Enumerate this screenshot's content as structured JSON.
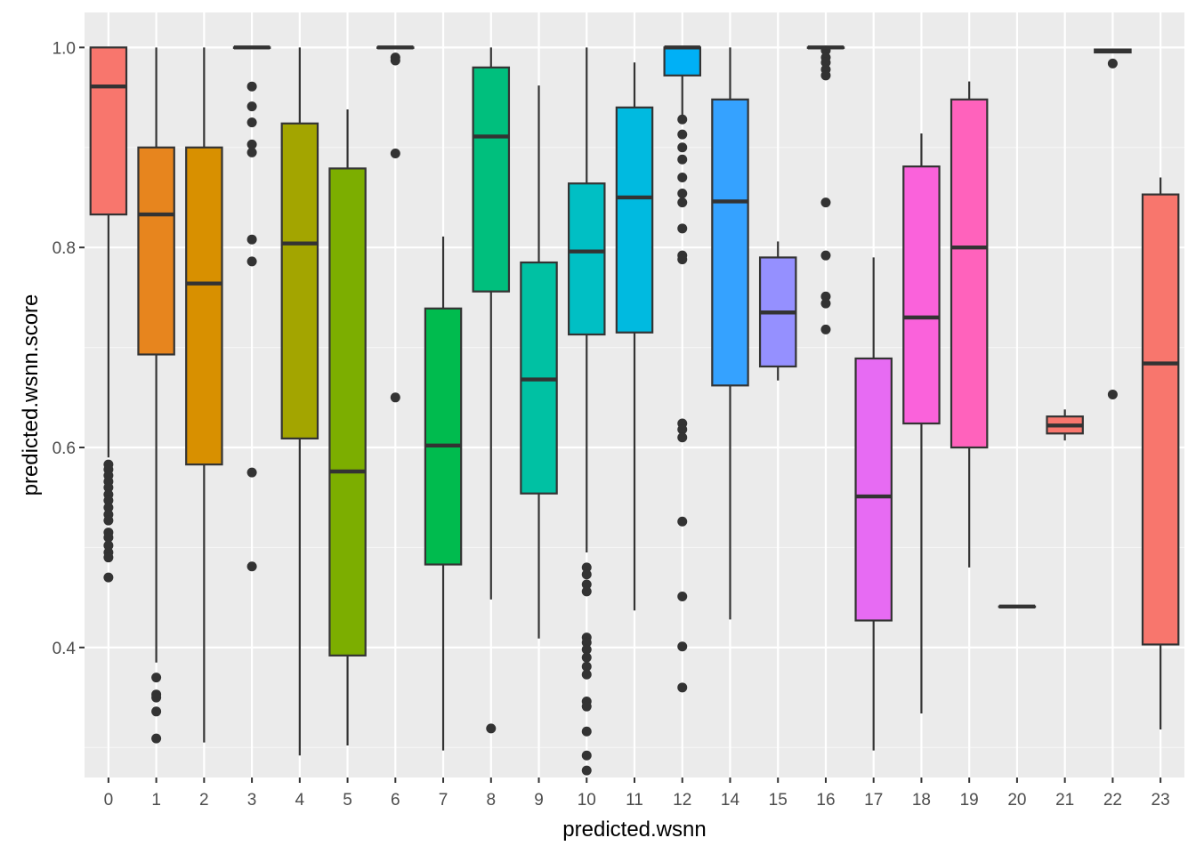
{
  "chart_data": {
    "type": "box",
    "title": "",
    "xlabel": "predicted.wsnn",
    "ylabel": "predicted.wsnn.score",
    "ylim": [
      0.27,
      1.035
    ],
    "y_ticks": [
      0.4,
      0.6,
      0.8,
      1.0
    ],
    "y_tick_labels": [
      "0.4",
      "0.6",
      "0.8",
      "1.0"
    ],
    "grid": true,
    "legend": "none",
    "categories": [
      "0",
      "1",
      "2",
      "3",
      "4",
      "5",
      "6",
      "7",
      "8",
      "9",
      "10",
      "11",
      "12",
      "14",
      "15",
      "16",
      "17",
      "18",
      "19",
      "20",
      "21",
      "22",
      "23"
    ],
    "boxes": [
      {
        "label": "0",
        "color": "#F8766D",
        "q1": 0.833,
        "median": 0.961,
        "q3": 1.0,
        "whisker_low": 0.59,
        "whisker_high": 1.0,
        "outliers": [
          0.583,
          0.578,
          0.572,
          0.566,
          0.56,
          0.553,
          0.547,
          0.54,
          0.533,
          0.527,
          0.515,
          0.51,
          0.502,
          0.495,
          0.49,
          0.47
        ]
      },
      {
        "label": "1",
        "color": "#E7851E",
        "q1": 0.693,
        "median": 0.833,
        "q3": 0.9,
        "whisker_low": 0.385,
        "whisker_high": 1.0,
        "outliers": [
          0.37,
          0.353,
          0.35,
          0.336,
          0.309
        ]
      },
      {
        "label": "2",
        "color": "#D89000",
        "q1": 0.583,
        "median": 0.764,
        "q3": 0.9,
        "whisker_low": 0.305,
        "whisker_high": 1.0,
        "outliers": []
      },
      {
        "label": "3",
        "color": "#C09B00",
        "q1": 1.0,
        "median": 1.0,
        "q3": 1.0,
        "whisker_low": 1.0,
        "whisker_high": 1.0,
        "outliers": [
          0.961,
          0.941,
          0.925,
          0.903,
          0.895,
          0.808,
          0.786,
          0.575,
          0.481
        ]
      },
      {
        "label": "4",
        "color": "#A3A500",
        "q1": 0.609,
        "median": 0.804,
        "q3": 0.924,
        "whisker_low": 0.292,
        "whisker_high": 1.0,
        "outliers": []
      },
      {
        "label": "5",
        "color": "#7CAE00",
        "q1": 0.392,
        "median": 0.576,
        "q3": 0.879,
        "whisker_low": 0.302,
        "whisker_high": 0.938,
        "outliers": []
      },
      {
        "label": "6",
        "color": "#39B600",
        "q1": 1.0,
        "median": 1.0,
        "q3": 1.0,
        "whisker_low": 1.0,
        "whisker_high": 1.0,
        "outliers": [
          0.99,
          0.987,
          0.894,
          0.65
        ]
      },
      {
        "label": "7",
        "color": "#00BB4E",
        "q1": 0.483,
        "median": 0.602,
        "q3": 0.739,
        "whisker_low": 0.297,
        "whisker_high": 0.811,
        "outliers": []
      },
      {
        "label": "8",
        "color": "#00BF7D",
        "q1": 0.756,
        "median": 0.911,
        "q3": 0.98,
        "whisker_low": 0.448,
        "whisker_high": 1.0,
        "outliers": [
          0.319
        ]
      },
      {
        "label": "9",
        "color": "#00C1A3",
        "q1": 0.554,
        "median": 0.668,
        "q3": 0.785,
        "whisker_low": 0.409,
        "whisker_high": 0.962,
        "outliers": []
      },
      {
        "label": "10",
        "color": "#00BFC4",
        "q1": 0.713,
        "median": 0.796,
        "q3": 0.864,
        "whisker_low": 0.495,
        "whisker_high": 1.0,
        "outliers": [
          0.48,
          0.473,
          0.463,
          0.456,
          0.41,
          0.405,
          0.398,
          0.39,
          0.381,
          0.373,
          0.346,
          0.341,
          0.316,
          0.292,
          0.277
        ]
      },
      {
        "label": "11",
        "color": "#00BAE0",
        "q1": 0.715,
        "median": 0.85,
        "q3": 0.94,
        "whisker_low": 0.437,
        "whisker_high": 0.985,
        "outliers": []
      },
      {
        "label": "12",
        "color": "#00B0F6",
        "q1": 0.972,
        "median": 1.0,
        "q3": 1.0,
        "whisker_low": 0.932,
        "whisker_high": 1.0,
        "outliers": [
          0.928,
          0.913,
          0.9,
          0.888,
          0.87,
          0.854,
          0.845,
          0.819,
          0.792,
          0.788,
          0.624,
          0.618,
          0.61,
          0.526,
          0.451,
          0.401,
          0.36
        ]
      },
      {
        "label": "14",
        "color": "#35A2FF",
        "q1": 0.662,
        "median": 0.846,
        "q3": 0.948,
        "whisker_low": 0.428,
        "whisker_high": 1.0,
        "outliers": []
      },
      {
        "label": "15",
        "color": "#9590FF",
        "q1": 0.681,
        "median": 0.735,
        "q3": 0.79,
        "whisker_low": 0.667,
        "whisker_high": 0.806,
        "outliers": []
      },
      {
        "label": "16",
        "color": "#C77CFF",
        "q1": 1.0,
        "median": 1.0,
        "q3": 1.0,
        "whisker_low": 1.0,
        "whisker_high": 1.0,
        "outliers": [
          0.997,
          0.99,
          0.985,
          0.978,
          0.972,
          0.845,
          0.792,
          0.751,
          0.744,
          0.718
        ]
      },
      {
        "label": "17",
        "color": "#E76BF3",
        "q1": 0.427,
        "median": 0.551,
        "q3": 0.689,
        "whisker_low": 0.297,
        "whisker_high": 0.79,
        "outliers": []
      },
      {
        "label": "18",
        "color": "#FA62DB",
        "q1": 0.624,
        "median": 0.73,
        "q3": 0.881,
        "whisker_low": 0.334,
        "whisker_high": 0.914,
        "outliers": []
      },
      {
        "label": "19",
        "color": "#FF62BC",
        "q1": 0.6,
        "median": 0.8,
        "q3": 0.948,
        "whisker_low": 0.48,
        "whisker_high": 0.966,
        "outliers": []
      },
      {
        "label": "20",
        "color": "#FF6C91",
        "q1": 0.441,
        "median": 0.441,
        "q3": 0.441,
        "whisker_low": 0.441,
        "whisker_high": 0.441,
        "outliers": []
      },
      {
        "label": "21",
        "color": "#F8766D",
        "q1": 0.614,
        "median": 0.622,
        "q3": 0.631,
        "whisker_low": 0.607,
        "whisker_high": 0.638,
        "outliers": []
      },
      {
        "label": "22",
        "color": "#F8766D",
        "q1": 0.995,
        "median": 0.997,
        "q3": 0.998,
        "whisker_low": 0.995,
        "whisker_high": 0.998,
        "outliers": [
          0.984,
          0.653
        ]
      },
      {
        "label": "23",
        "color": "#F8766D",
        "q1": 0.403,
        "median": 0.684,
        "q3": 0.853,
        "whisker_low": 0.318,
        "whisker_high": 0.87,
        "outliers": []
      }
    ]
  }
}
